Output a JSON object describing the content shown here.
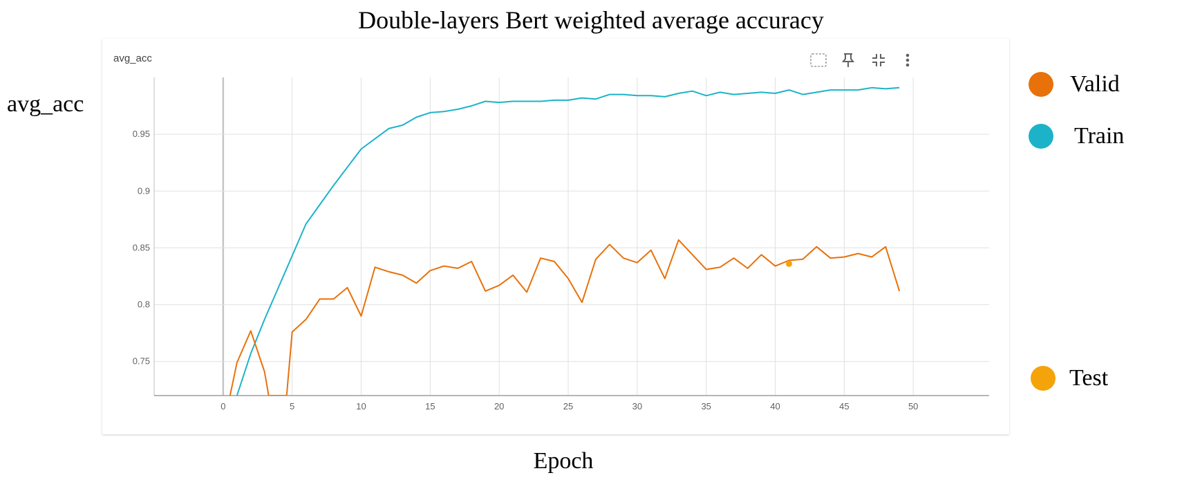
{
  "chart_data": {
    "type": "line",
    "title": "Double-layers Bert weighted average accuracy",
    "panel_title": "avg_acc",
    "xlabel": "Epoch",
    "ylabel": "avg_acc",
    "xlim": [
      -5,
      55.5
    ],
    "ylim": [
      0.72,
      1.0
    ],
    "x_ticks": [
      0,
      5,
      10,
      15,
      20,
      25,
      30,
      35,
      40,
      45,
      50
    ],
    "y_ticks": [
      0.75,
      0.8,
      0.85,
      0.9,
      0.95
    ],
    "grid": true,
    "legend_position": "right",
    "series": [
      {
        "name": "Train",
        "color": "#1cb3c8",
        "x": [
          1,
          2,
          3,
          4,
          5,
          6,
          7,
          8,
          9,
          10,
          11,
          12,
          13,
          14,
          15,
          16,
          17,
          18,
          19,
          20,
          21,
          22,
          23,
          24,
          25,
          26,
          27,
          28,
          29,
          30,
          31,
          32,
          33,
          34,
          35,
          36,
          37,
          38,
          39,
          40,
          41,
          42,
          43,
          44,
          45,
          46,
          47,
          48,
          49
        ],
        "values": [
          0.72,
          0.757,
          0.787,
          0.815,
          0.843,
          0.871,
          0.888,
          0.905,
          0.921,
          0.937,
          0.946,
          0.955,
          0.958,
          0.965,
          0.969,
          0.97,
          0.972,
          0.975,
          0.979,
          0.978,
          0.979,
          0.979,
          0.979,
          0.98,
          0.98,
          0.982,
          0.981,
          0.985,
          0.985,
          0.984,
          0.984,
          0.983,
          0.986,
          0.988,
          0.984,
          0.987,
          0.985,
          0.986,
          0.987,
          0.986,
          0.989,
          0.985,
          0.987,
          0.989,
          0.989,
          0.989,
          0.991,
          0.99,
          0.991
        ]
      },
      {
        "name": "Valid",
        "color": "#e8710a",
        "x": [
          0.5,
          1,
          2,
          3,
          3.3,
          4.6,
          5,
          6,
          7,
          8,
          9,
          10,
          11,
          12,
          13,
          14,
          15,
          16,
          17,
          18,
          19,
          20,
          21,
          22,
          23,
          24,
          25,
          26,
          27,
          28,
          29,
          30,
          31,
          32,
          33,
          34,
          35,
          36,
          37,
          38,
          39,
          40,
          41,
          42,
          43,
          44,
          45,
          46,
          47,
          48,
          49
        ],
        "values": [
          0.72,
          0.749,
          0.777,
          0.741,
          0.72,
          0.72,
          0.776,
          0.787,
          0.805,
          0.805,
          0.815,
          0.79,
          0.833,
          0.829,
          0.826,
          0.819,
          0.83,
          0.834,
          0.832,
          0.838,
          0.812,
          0.817,
          0.826,
          0.811,
          0.841,
          0.838,
          0.823,
          0.802,
          0.84,
          0.853,
          0.841,
          0.837,
          0.848,
          0.823,
          0.857,
          0.844,
          0.831,
          0.833,
          0.841,
          0.832,
          0.844,
          0.834,
          0.839,
          0.84,
          0.851,
          0.841,
          0.842,
          0.845,
          0.842,
          0.851,
          0.812
        ]
      },
      {
        "name": "Test",
        "color": "#f5a30a",
        "x": [
          41
        ],
        "values": [
          0.836
        ]
      }
    ]
  },
  "toolbar": {
    "icons": [
      "fit-domain-icon",
      "pin-icon",
      "collapse-icon",
      "more-vert-icon"
    ]
  }
}
